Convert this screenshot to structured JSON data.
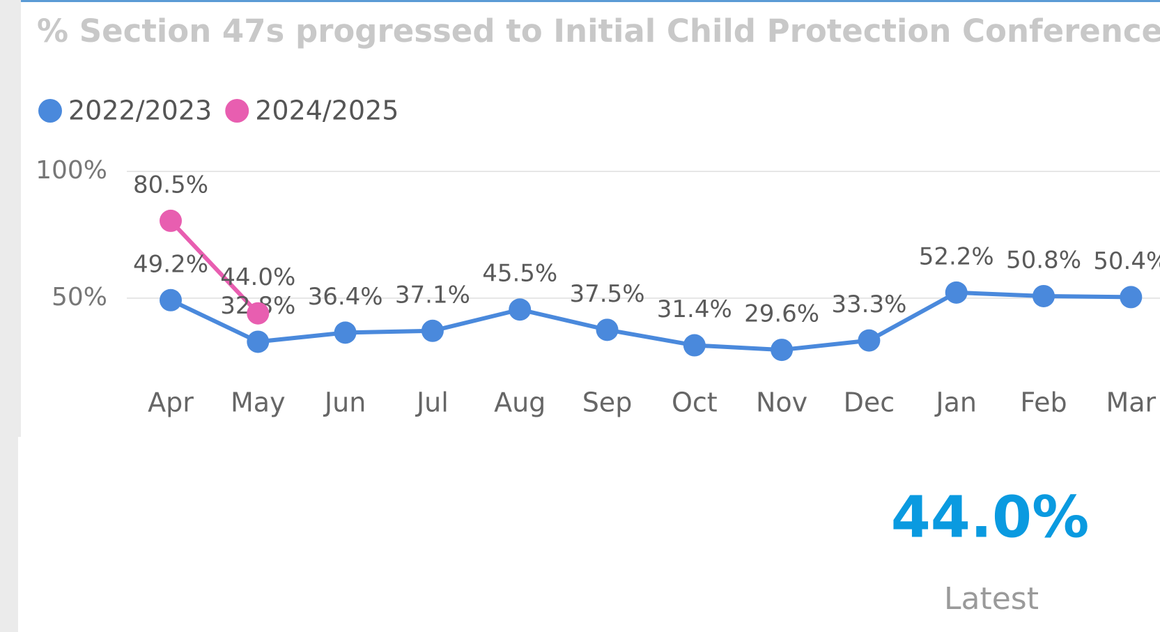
{
  "chart_data": {
    "type": "line",
    "title": "% Section 47s progressed to Initial Child Protection Conference",
    "categories": [
      "Apr",
      "May",
      "Jun",
      "Jul",
      "Aug",
      "Sep",
      "Oct",
      "Nov",
      "Dec",
      "Jan",
      "Feb",
      "Mar"
    ],
    "series": [
      {
        "name": "2022/2023",
        "color": "#4a89dc",
        "values": [
          49.2,
          32.8,
          36.4,
          37.1,
          45.5,
          37.5,
          31.4,
          29.6,
          33.3,
          52.2,
          50.8,
          50.4
        ],
        "value_labels": [
          "49.2%",
          "32.8%",
          "36.4%",
          "37.1%",
          "45.5%",
          "37.5%",
          "31.4%",
          "29.6%",
          "33.3%",
          "52.2%",
          "50.8%",
          "50.4%"
        ]
      },
      {
        "name": "2024/2025",
        "color": "#e85eb0",
        "values": [
          80.5,
          44.0,
          null,
          null,
          null,
          null,
          null,
          null,
          null,
          null,
          null,
          null
        ],
        "value_labels": [
          "80.5%",
          "44.0%",
          null,
          null,
          null,
          null,
          null,
          null,
          null,
          null,
          null,
          null
        ]
      }
    ],
    "ylim": [
      20,
      100
    ],
    "yticks": [
      {
        "value": 50,
        "label": "50%"
      },
      {
        "value": 100,
        "label": "100%"
      }
    ],
    "grid": true,
    "legend": "top-left"
  },
  "kpi": {
    "value": "44.0%",
    "label": "Latest"
  }
}
